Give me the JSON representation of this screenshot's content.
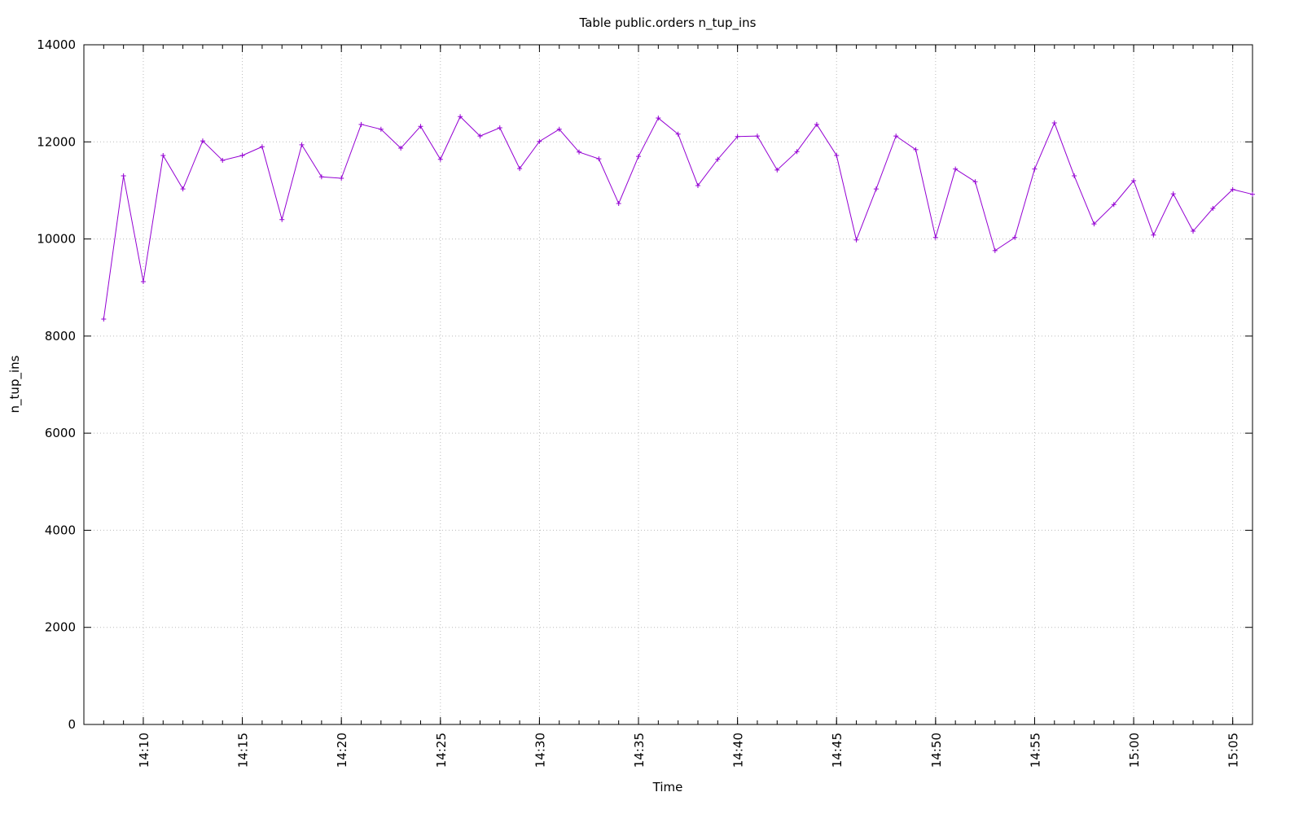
{
  "chart_data": {
    "type": "line",
    "title": "Table public.orders n_tup_ins",
    "x_label": "Time",
    "y_label": "n_tup_ins",
    "x": [
      "14:08",
      "14:09",
      "14:10",
      "14:11",
      "14:12",
      "14:13",
      "14:14",
      "14:15",
      "14:16",
      "14:17",
      "14:18",
      "14:19",
      "14:20",
      "14:21",
      "14:22",
      "14:23",
      "14:24",
      "14:25",
      "14:26",
      "14:27",
      "14:28",
      "14:29",
      "14:30",
      "14:31",
      "14:32",
      "14:33",
      "14:34",
      "14:35",
      "14:36",
      "14:37",
      "14:38",
      "14:39",
      "14:40",
      "14:41",
      "14:42",
      "14:43",
      "14:44",
      "14:45",
      "14:46",
      "14:47",
      "14:48",
      "14:49",
      "14:50",
      "14:51",
      "14:52",
      "14:53",
      "14:54",
      "14:55",
      "14:56",
      "14:57",
      "14:58",
      "14:59",
      "15:00",
      "15:01",
      "15:02",
      "15:03",
      "15:04",
      "15:05",
      "15:06"
    ],
    "series": [
      {
        "name": "n_tup_ins",
        "color": "#9400d3",
        "values": [
          8350,
          11300,
          9120,
          11720,
          11030,
          12020,
          11620,
          11720,
          11900,
          10400,
          11940,
          11280,
          11250,
          12360,
          12260,
          11870,
          12320,
          11640,
          12520,
          12120,
          12290,
          11450,
          12010,
          12260,
          11790,
          11650,
          10730,
          11700,
          12490,
          12160,
          11100,
          11640,
          12110,
          12120,
          11420,
          11800,
          12360,
          11720,
          9980,
          11030,
          12120,
          11840,
          10030,
          11440,
          11180,
          9760,
          10030,
          11440,
          12390,
          11300,
          10310,
          10710,
          11200,
          10080,
          10930,
          10160,
          10630,
          11020,
          10920
        ]
      }
    ],
    "xlim": [
      "14:07",
      "15:06"
    ],
    "xticks": [
      "14:10",
      "14:15",
      "14:20",
      "14:25",
      "14:30",
      "14:35",
      "14:40",
      "14:45",
      "14:50",
      "14:55",
      "15:00",
      "15:05"
    ],
    "ylim": [
      0,
      14000
    ],
    "yticks": [
      0,
      2000,
      4000,
      6000,
      8000,
      10000,
      12000,
      14000
    ],
    "grid": true
  }
}
